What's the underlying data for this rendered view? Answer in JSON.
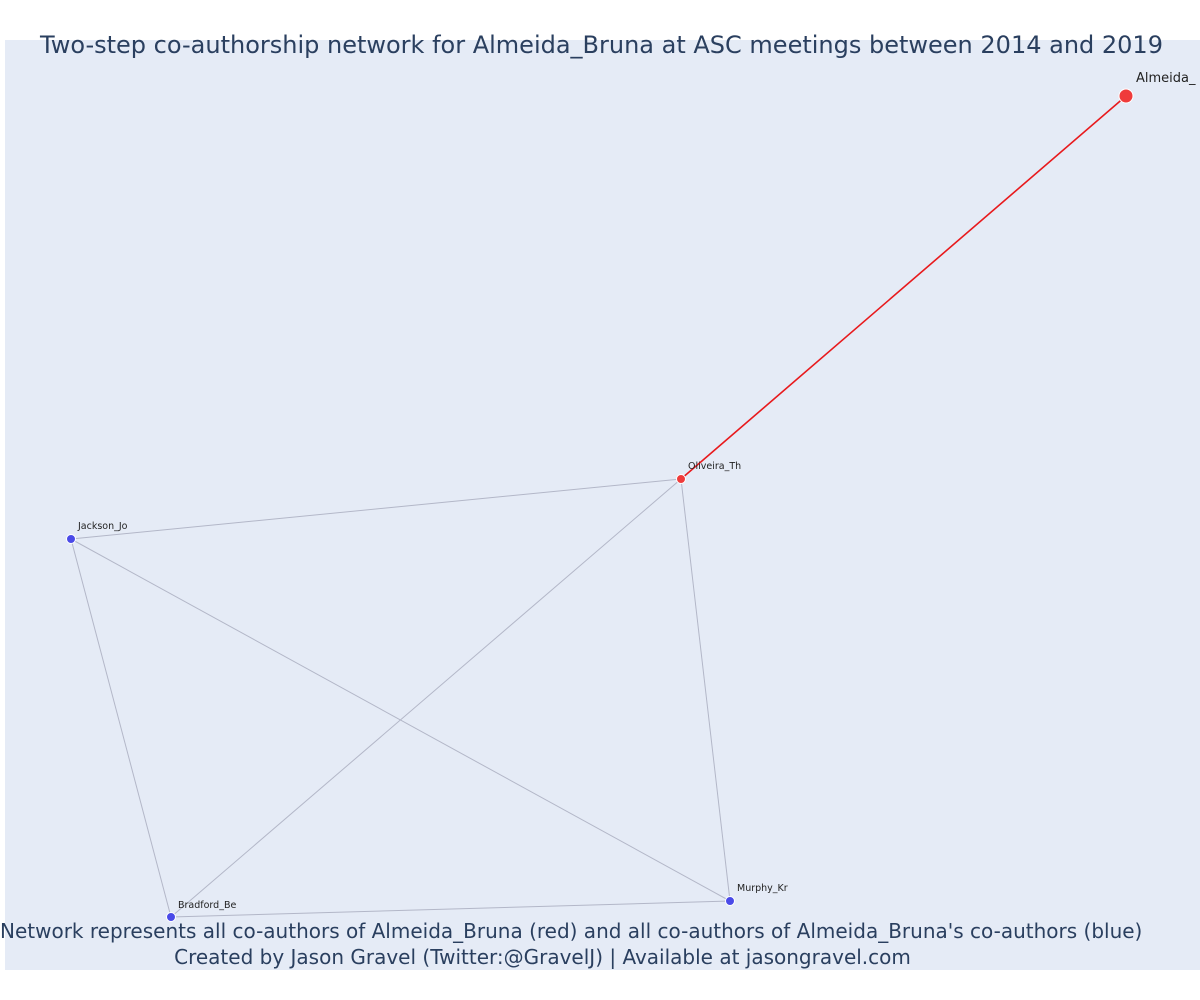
{
  "title": "Two-step co-authorship network for Almeida_Bruna at ASC meetings between 2014 and 2019",
  "captions": {
    "line1": "Network represents all co-authors of Almeida_Bruna (red) and all co-authors of Almeida_Bruna's co-authors (blue)",
    "line2": "Created by Jason Gravel (Twitter:@GravelJ) | Available at jasongravel.com"
  },
  "colors": {
    "focal": "#ef3b3b",
    "direct_coauthor": "#ef3b3b",
    "second_step": "#4a4ae8",
    "focal_edge": "#e8191c",
    "other_edge": "#b3b7c8",
    "background": "#e5ebf6",
    "text": "#2a3f5f"
  },
  "nodes": [
    {
      "id": "Almeida_Bruna",
      "label": "Almeida_",
      "group": "focal"
    },
    {
      "id": "Oliveira_Th",
      "label": "Oliveira_Th",
      "group": "direct_coauthor"
    },
    {
      "id": "Jackson_Jo",
      "label": "Jackson_Jo",
      "group": "second_step"
    },
    {
      "id": "Bradford_Be",
      "label": "Bradford_Be",
      "group": "second_step"
    },
    {
      "id": "Murphy_Kr",
      "label": "Murphy_Kr",
      "group": "second_step"
    }
  ],
  "edges": [
    {
      "source": "Almeida_Bruna",
      "target": "Oliveira_Th",
      "type": "focal"
    },
    {
      "source": "Oliveira_Th",
      "target": "Jackson_Jo",
      "type": "other"
    },
    {
      "source": "Oliveira_Th",
      "target": "Bradford_Be",
      "type": "other"
    },
    {
      "source": "Oliveira_Th",
      "target": "Murphy_Kr",
      "type": "other"
    },
    {
      "source": "Jackson_Jo",
      "target": "Bradford_Be",
      "type": "other"
    },
    {
      "source": "Jackson_Jo",
      "target": "Murphy_Kr",
      "type": "other"
    },
    {
      "source": "Bradford_Be",
      "target": "Murphy_Kr",
      "type": "other"
    }
  ]
}
